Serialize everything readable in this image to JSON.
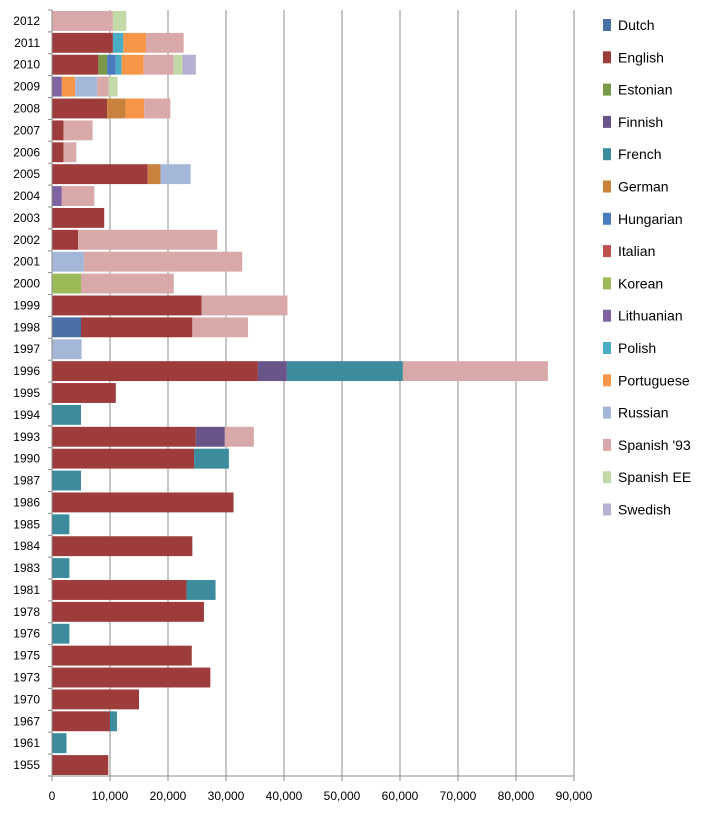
{
  "chart_data": {
    "type": "bar",
    "orientation": "horizontal",
    "stacked": true,
    "title": "",
    "xlabel": "",
    "ylabel": "",
    "xlim": [
      0,
      90000
    ],
    "x_ticks": [
      "0",
      "10,000",
      "20,000",
      "30,000",
      "40,000",
      "50,000",
      "60,000",
      "70,000",
      "80,000",
      "90,000"
    ],
    "grid": "vertical",
    "legend_position": "right",
    "categories": [
      "2012",
      "2011",
      "2010",
      "2009",
      "2008",
      "2007",
      "2006",
      "2005",
      "2004",
      "2003",
      "2002",
      "2001",
      "2000",
      "1999",
      "1998",
      "1997",
      "1996",
      "1995",
      "1994",
      "1993",
      "1990",
      "1987",
      "1986",
      "1985",
      "1984",
      "1983",
      "1981",
      "1978",
      "1976",
      "1975",
      "1973",
      "1970",
      "1967",
      "1961",
      "1955"
    ],
    "series": [
      {
        "name": "Dutch",
        "color": "#4a6fa5",
        "values": [
          0,
          0,
          0,
          0,
          0,
          0,
          0,
          0,
          0,
          0,
          0,
          0,
          0,
          0,
          5000,
          0,
          0,
          0,
          0,
          0,
          0,
          0,
          0,
          0,
          0,
          0,
          0,
          0,
          0,
          0,
          0,
          0,
          0,
          0,
          0
        ]
      },
      {
        "name": "English",
        "color": "#9e3b3b",
        "values": [
          0,
          10500,
          8000,
          0,
          9500,
          2000,
          2000,
          16500,
          0,
          9000,
          4500,
          0,
          0,
          25800,
          19200,
          0,
          35500,
          11000,
          0,
          24800,
          24500,
          0,
          31300,
          0,
          24200,
          0,
          23200,
          26200,
          0,
          24100,
          27300,
          15000,
          10000,
          0,
          9700
        ]
      },
      {
        "name": "Estonian",
        "color": "#7a9a4a",
        "values": [
          0,
          0,
          1500,
          0,
          0,
          0,
          0,
          0,
          0,
          0,
          0,
          0,
          0,
          0,
          0,
          0,
          0,
          0,
          0,
          0,
          0,
          0,
          0,
          0,
          0,
          0,
          0,
          0,
          0,
          0,
          0,
          0,
          0,
          0,
          0
        ]
      },
      {
        "name": "Finnish",
        "color": "#6a558a",
        "values": [
          0,
          0,
          0,
          0,
          0,
          0,
          0,
          0,
          0,
          0,
          0,
          0,
          0,
          0,
          0,
          0,
          5000,
          0,
          0,
          5000,
          0,
          0,
          0,
          0,
          0,
          0,
          0,
          0,
          0,
          0,
          0,
          0,
          0,
          0,
          0
        ]
      },
      {
        "name": "French",
        "color": "#3d8c9e",
        "values": [
          0,
          0,
          0,
          0,
          0,
          0,
          0,
          0,
          0,
          0,
          0,
          0,
          0,
          0,
          0,
          0,
          20000,
          0,
          5000,
          0,
          6000,
          5000,
          0,
          3000,
          0,
          3000,
          5000,
          0,
          3000,
          0,
          0,
          0,
          1200,
          2500,
          0
        ]
      },
      {
        "name": "German",
        "color": "#c8823e",
        "values": [
          0,
          0,
          0,
          0,
          3200,
          0,
          0,
          2200,
          0,
          0,
          0,
          0,
          0,
          0,
          0,
          0,
          0,
          0,
          0,
          0,
          0,
          0,
          0,
          0,
          0,
          0,
          0,
          0,
          0,
          0,
          0,
          0,
          0,
          0,
          0
        ]
      },
      {
        "name": "Hungarian",
        "color": "#4a7bbf",
        "values": [
          0,
          0,
          1500,
          0,
          0,
          0,
          0,
          0,
          0,
          0,
          0,
          0,
          0,
          0,
          0,
          0,
          0,
          0,
          0,
          0,
          0,
          0,
          0,
          0,
          0,
          0,
          0,
          0,
          0,
          0,
          0,
          0,
          0,
          0,
          0
        ]
      },
      {
        "name": "Italian",
        "color": "#c0504d",
        "values": [
          0,
          0,
          0,
          0,
          0,
          0,
          0,
          0,
          0,
          0,
          0,
          0,
          0,
          0,
          0,
          0,
          0,
          0,
          0,
          0,
          0,
          0,
          0,
          0,
          0,
          0,
          0,
          0,
          0,
          0,
          0,
          0,
          0,
          0,
          0
        ]
      },
      {
        "name": "Korean",
        "color": "#9bbb59",
        "values": [
          0,
          0,
          0,
          0,
          0,
          0,
          0,
          0,
          0,
          0,
          0,
          0,
          5000,
          0,
          0,
          0,
          0,
          0,
          0,
          0,
          0,
          0,
          0,
          0,
          0,
          0,
          0,
          0,
          0,
          0,
          0,
          0,
          0,
          0,
          0
        ]
      },
      {
        "name": "Lithuanian",
        "color": "#8064a2",
        "values": [
          0,
          0,
          0,
          1700,
          0,
          0,
          0,
          0,
          1700,
          0,
          0,
          0,
          0,
          0,
          0,
          0,
          0,
          0,
          0,
          0,
          0,
          0,
          0,
          0,
          0,
          0,
          0,
          0,
          0,
          0,
          0,
          0,
          0,
          0,
          0
        ]
      },
      {
        "name": "Polish",
        "color": "#4bacc6",
        "values": [
          0,
          1800,
          1000,
          0,
          0,
          0,
          0,
          0,
          0,
          0,
          0,
          0,
          0,
          0,
          0,
          0,
          0,
          0,
          0,
          0,
          0,
          0,
          0,
          0,
          0,
          0,
          0,
          0,
          0,
          0,
          0,
          0,
          0,
          0,
          0
        ]
      },
      {
        "name": "Portuguese",
        "color": "#f79646",
        "values": [
          0,
          3900,
          3800,
          2300,
          3200,
          0,
          0,
          0,
          0,
          0,
          0,
          0,
          0,
          0,
          0,
          0,
          0,
          0,
          0,
          0,
          0,
          0,
          0,
          0,
          0,
          0,
          0,
          0,
          0,
          0,
          0,
          0,
          0,
          0,
          0
        ]
      },
      {
        "name": "Russian",
        "color": "#a5b7d8",
        "values": [
          0,
          0,
          0,
          3800,
          0,
          0,
          0,
          5200,
          0,
          0,
          0,
          5500,
          0,
          0,
          0,
          5100,
          0,
          0,
          0,
          0,
          0,
          0,
          0,
          0,
          0,
          0,
          0,
          0,
          0,
          0,
          0,
          0,
          0,
          0,
          0
        ]
      },
      {
        "name": "Spanish '93",
        "color": "#d9a9a9",
        "values": [
          10500,
          6500,
          5200,
          2000,
          4500,
          5000,
          2200,
          0,
          5600,
          0,
          24000,
          27300,
          16000,
          14800,
          9600,
          0,
          25000,
          0,
          0,
          5000,
          0,
          0,
          0,
          0,
          0,
          0,
          0,
          0,
          0,
          0,
          0,
          0,
          0,
          0,
          0
        ]
      },
      {
        "name": "Spanish EE",
        "color": "#c4d9a8",
        "values": [
          2300,
          0,
          1500,
          1500,
          0,
          0,
          0,
          0,
          0,
          0,
          0,
          0,
          0,
          0,
          0,
          0,
          0,
          0,
          0,
          0,
          0,
          0,
          0,
          0,
          0,
          0,
          0,
          0,
          0,
          0,
          0,
          0,
          0,
          0,
          0
        ]
      },
      {
        "name": "Swedish",
        "color": "#b7b0d4",
        "values": [
          0,
          0,
          2300,
          0,
          0,
          0,
          0,
          0,
          0,
          0,
          0,
          0,
          0,
          0,
          0,
          0,
          0,
          0,
          0,
          0,
          0,
          0,
          0,
          0,
          0,
          0,
          0,
          0,
          0,
          0,
          0,
          0,
          0,
          0,
          0
        ]
      }
    ]
  }
}
